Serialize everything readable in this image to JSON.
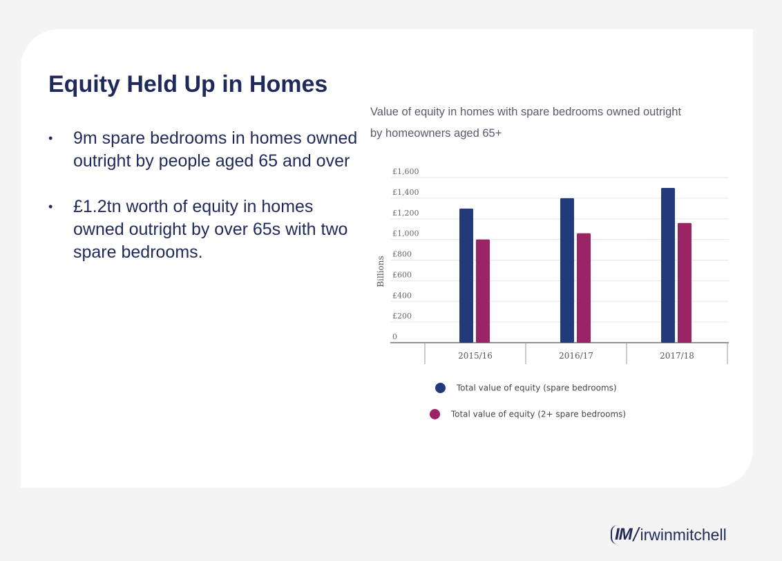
{
  "slide": {
    "title": "Equity Held Up in Homes",
    "bullets": [
      "9m spare bedrooms in homes owned outright by people aged 65 and over",
      "£1.2tn worth of equity in homes owned outright by over 65s with two spare bedrooms."
    ],
    "bullet_marker": "•"
  },
  "logo": {
    "mark": "IM",
    "separator": "/",
    "wordmark": "irwinmitchell"
  },
  "colors": {
    "navy": "#233a7a",
    "magenta": "#9b2466",
    "title": "#1f2a5a"
  },
  "chart_data": {
    "type": "bar",
    "title": "Value of equity in homes with spare bedrooms owned outright by homeowners aged 65+",
    "ylabel": "Billions",
    "xlabel": "",
    "ylim": [
      0,
      1600
    ],
    "yticks": [
      0,
      200,
      400,
      600,
      800,
      1000,
      1200,
      1400,
      1600
    ],
    "ytick_labels": [
      "0",
      "£200",
      "£400",
      "£600",
      "£800",
      "£1,000",
      "£1,200",
      "£1,400",
      "£1,600"
    ],
    "categories": [
      "2015/16",
      "2016/17",
      "2017/18"
    ],
    "series": [
      {
        "name": "Total value of equity (spare bedrooms)",
        "color": "#233a7a",
        "values": [
          1300,
          1400,
          1500
        ]
      },
      {
        "name": "Total value of equity (2+ spare bedrooms)",
        "color": "#9b2466",
        "values": [
          1000,
          1060,
          1160
        ]
      }
    ],
    "grid": true,
    "legend_position": "bottom"
  }
}
